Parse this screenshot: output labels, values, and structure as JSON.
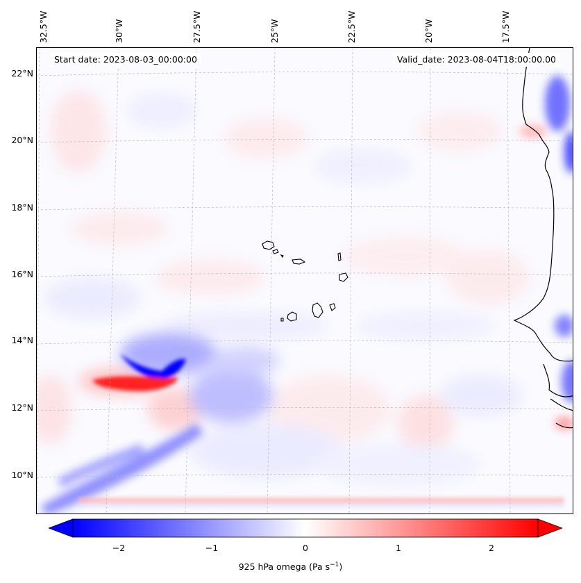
{
  "header": {
    "start_date": "Start date: 2023-08-03_00:00:00",
    "valid_date": "Valid_date: 2023-08-04T18:00:00.00"
  },
  "map": {
    "longitude_labels": [
      "32.5°W",
      "30°W",
      "27.5°W",
      "25°W",
      "22.5°W",
      "20°W",
      "17.5°W"
    ],
    "latitude_labels": [
      "22°N",
      "20°N",
      "18°N",
      "16°N",
      "14°N",
      "12°N",
      "10°N"
    ],
    "extent": {
      "lon_min": -32.8,
      "lon_max": -15.4,
      "lat_min": 8.9,
      "lat_max": 22.8
    },
    "colors": {
      "negative": "#0000ff",
      "zero": "#ffffff",
      "positive": "#ff0000",
      "coastline": "#000000"
    }
  },
  "colorbar": {
    "label_prefix": "925 hPa omega (Pa s",
    "label_exp": "−1",
    "label_suffix": ")",
    "ticks": [
      "−2",
      "−1",
      "0",
      "1",
      "2"
    ],
    "tick_values": [
      -2,
      -1,
      0,
      1,
      2
    ],
    "range": [
      -2.5,
      2.5
    ]
  }
}
